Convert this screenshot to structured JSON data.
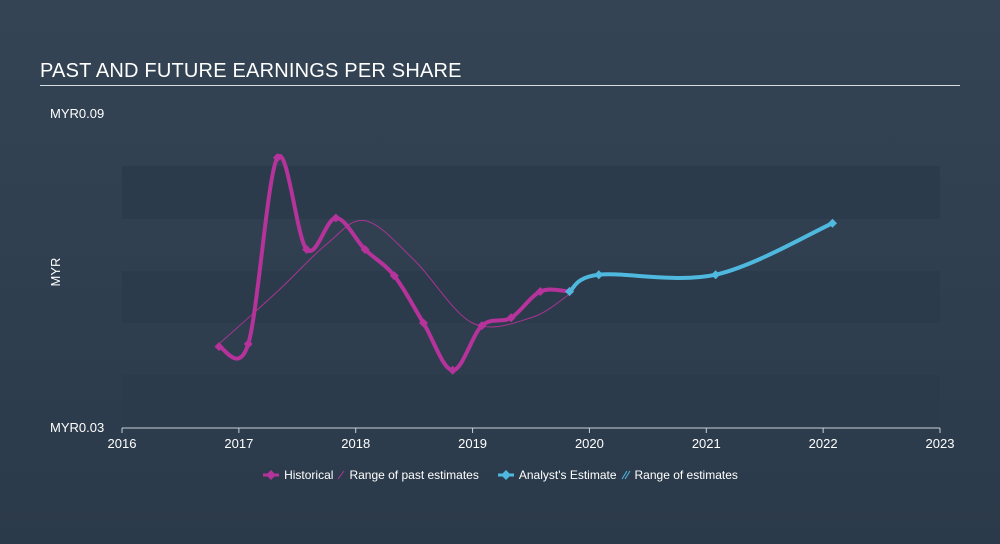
{
  "chart_data": {
    "type": "line",
    "title": "PAST AND FUTURE EARNINGS PER SHARE",
    "ylabel": "MYR",
    "ylim": [
      0.03,
      0.09
    ],
    "xlim": [
      2016,
      2023
    ],
    "y_tick_labels": [
      "MYR0.09",
      "MYR0.03"
    ],
    "x_tick_labels": [
      "2016",
      "2017",
      "2018",
      "2019",
      "2020",
      "2021",
      "2022",
      "2023"
    ],
    "grid": "horizontal bands",
    "legend_position": "bottom",
    "series": [
      {
        "name": "Historical",
        "color": "#b5339a",
        "points": [
          [
            2016.83,
            0.0455
          ],
          [
            2017.08,
            0.046
          ],
          [
            2017.33,
            0.0815
          ],
          [
            2017.58,
            0.064
          ],
          [
            2017.83,
            0.07
          ],
          [
            2018.08,
            0.064
          ],
          [
            2018.33,
            0.059
          ],
          [
            2018.58,
            0.05
          ],
          [
            2018.83,
            0.041
          ],
          [
            2019.08,
            0.0495
          ],
          [
            2019.33,
            0.051
          ],
          [
            2019.58,
            0.056
          ],
          [
            2019.83,
            0.056
          ]
        ]
      },
      {
        "name": "Range of past estimates",
        "color": "#b5339a",
        "points": [
          [
            2016.83,
            0.046
          ],
          [
            2017.33,
            0.056
          ],
          [
            2017.75,
            0.065
          ],
          [
            2018.08,
            0.0695
          ],
          [
            2018.5,
            0.062
          ],
          [
            2019.0,
            0.05
          ],
          [
            2019.5,
            0.051
          ],
          [
            2019.83,
            0.0555
          ]
        ]
      },
      {
        "name": "Analyst's Estimate",
        "color": "#4fb8de",
        "points": [
          [
            2019.83,
            0.056
          ],
          [
            2020.08,
            0.0592
          ],
          [
            2021.08,
            0.0592
          ],
          [
            2022.08,
            0.069
          ]
        ]
      }
    ],
    "legend": [
      {
        "label": "Historical",
        "color": "#b5339a",
        "marker": "diamond-line"
      },
      {
        "label": "Range of past estimates",
        "color": "#b5339a",
        "marker": "hatch"
      },
      {
        "label": "Analyst's Estimate",
        "color": "#4fb8de",
        "marker": "diamond-line"
      },
      {
        "label": "Range of estimates",
        "color": "#4fb8de",
        "marker": "hatch"
      }
    ]
  }
}
